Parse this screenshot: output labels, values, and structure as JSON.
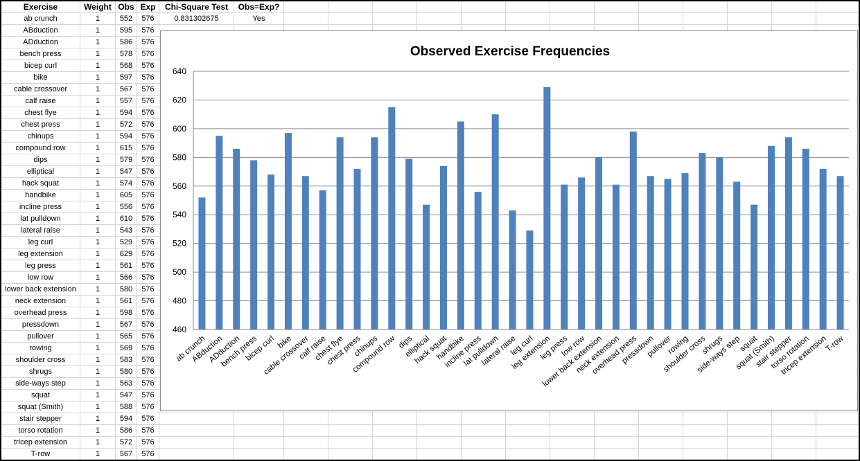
{
  "sheet": {
    "headers": {
      "exercise": "Exercise",
      "weight": "Weight",
      "obs": "Obs",
      "exp": "Exp",
      "chi": "Chi-Square Test",
      "eq": "Obs=Exp?"
    },
    "chi_value": "0.831302675",
    "eq_value": "Yes",
    "rows": [
      {
        "exercise": "ab crunch",
        "weight": "1",
        "obs": "552",
        "exp": "576"
      },
      {
        "exercise": "ABduction",
        "weight": "1",
        "obs": "595",
        "exp": "576"
      },
      {
        "exercise": "ADduction",
        "weight": "1",
        "obs": "586",
        "exp": "576"
      },
      {
        "exercise": "bench press",
        "weight": "1",
        "obs": "578",
        "exp": "576"
      },
      {
        "exercise": "bicep curl",
        "weight": "1",
        "obs": "568",
        "exp": "576"
      },
      {
        "exercise": "bike",
        "weight": "1",
        "obs": "597",
        "exp": "576"
      },
      {
        "exercise": "cable crossover",
        "weight": "1",
        "obs": "567",
        "exp": "576"
      },
      {
        "exercise": "calf raise",
        "weight": "1",
        "obs": "557",
        "exp": "576"
      },
      {
        "exercise": "chest flye",
        "weight": "1",
        "obs": "594",
        "exp": "576"
      },
      {
        "exercise": "chest press",
        "weight": "1",
        "obs": "572",
        "exp": "576"
      },
      {
        "exercise": "chinups",
        "weight": "1",
        "obs": "594",
        "exp": "576"
      },
      {
        "exercise": "compound row",
        "weight": "1",
        "obs": "615",
        "exp": "576"
      },
      {
        "exercise": "dips",
        "weight": "1",
        "obs": "579",
        "exp": "576"
      },
      {
        "exercise": "elliptical",
        "weight": "1",
        "obs": "547",
        "exp": "576"
      },
      {
        "exercise": "hack squat",
        "weight": "1",
        "obs": "574",
        "exp": "576"
      },
      {
        "exercise": "handbike",
        "weight": "1",
        "obs": "605",
        "exp": "576"
      },
      {
        "exercise": "incline press",
        "weight": "1",
        "obs": "556",
        "exp": "576"
      },
      {
        "exercise": "lat pulldown",
        "weight": "1",
        "obs": "610",
        "exp": "576"
      },
      {
        "exercise": "lateral raise",
        "weight": "1",
        "obs": "543",
        "exp": "576"
      },
      {
        "exercise": "leg curl",
        "weight": "1",
        "obs": "529",
        "exp": "576"
      },
      {
        "exercise": "leg extension",
        "weight": "1",
        "obs": "629",
        "exp": "576"
      },
      {
        "exercise": "leg press",
        "weight": "1",
        "obs": "561",
        "exp": "576"
      },
      {
        "exercise": "low row",
        "weight": "1",
        "obs": "566",
        "exp": "576"
      },
      {
        "exercise": "lower back extension",
        "weight": "1",
        "obs": "580",
        "exp": "576"
      },
      {
        "exercise": "neck extension",
        "weight": "1",
        "obs": "561",
        "exp": "576"
      },
      {
        "exercise": "overhead press",
        "weight": "1",
        "obs": "598",
        "exp": "576"
      },
      {
        "exercise": "pressdown",
        "weight": "1",
        "obs": "567",
        "exp": "576"
      },
      {
        "exercise": "pullover",
        "weight": "1",
        "obs": "565",
        "exp": "576"
      },
      {
        "exercise": "rowing",
        "weight": "1",
        "obs": "569",
        "exp": "576"
      },
      {
        "exercise": "shoulder cross",
        "weight": "1",
        "obs": "583",
        "exp": "576"
      },
      {
        "exercise": "shrugs",
        "weight": "1",
        "obs": "580",
        "exp": "576"
      },
      {
        "exercise": "side-ways step",
        "weight": "1",
        "obs": "563",
        "exp": "576"
      },
      {
        "exercise": "squat",
        "weight": "1",
        "obs": "547",
        "exp": "576"
      },
      {
        "exercise": "squat (Smith)",
        "weight": "1",
        "obs": "588",
        "exp": "576"
      },
      {
        "exercise": "stair stepper",
        "weight": "1",
        "obs": "594",
        "exp": "576"
      },
      {
        "exercise": "torso rotation",
        "weight": "1",
        "obs": "586",
        "exp": "576"
      },
      {
        "exercise": "tricep extension",
        "weight": "1",
        "obs": "572",
        "exp": "576"
      },
      {
        "exercise": "T-row",
        "weight": "1",
        "obs": "567",
        "exp": "576"
      }
    ]
  },
  "chart_data": {
    "type": "bar",
    "title": "Observed Exercise Frequencies",
    "xlabel": "",
    "ylabel": "",
    "ylim": [
      460,
      640
    ],
    "yticks": [
      460,
      480,
      500,
      520,
      540,
      560,
      580,
      600,
      620,
      640
    ],
    "grid": true,
    "legend": "none",
    "bar_color": "#4f81bd",
    "categories": [
      "ab crunch",
      "ABduction",
      "ADduction",
      "bench press",
      "bicep curl",
      "bike",
      "cable crossover",
      "calf raise",
      "chest flye",
      "chest press",
      "chinups",
      "compound row",
      "dips",
      "elliptical",
      "hack squat",
      "handbike",
      "incline press",
      "lat pulldown",
      "lateral raise",
      "leg curl",
      "leg extension",
      "leg press",
      "low row",
      "lower back extension",
      "neck extension",
      "overhead press",
      "pressdown",
      "pullover",
      "rowing",
      "shoulder cross",
      "shrugs",
      "side-ways step",
      "squat",
      "squat (Smith)",
      "stair stepper",
      "torso rotation",
      "tricep extension",
      "T-row"
    ],
    "values": [
      552,
      595,
      586,
      578,
      568,
      597,
      567,
      557,
      594,
      572,
      594,
      615,
      579,
      547,
      574,
      605,
      556,
      610,
      543,
      529,
      629,
      561,
      566,
      580,
      561,
      598,
      567,
      565,
      569,
      583,
      580,
      563,
      547,
      588,
      594,
      586,
      572,
      567
    ]
  }
}
